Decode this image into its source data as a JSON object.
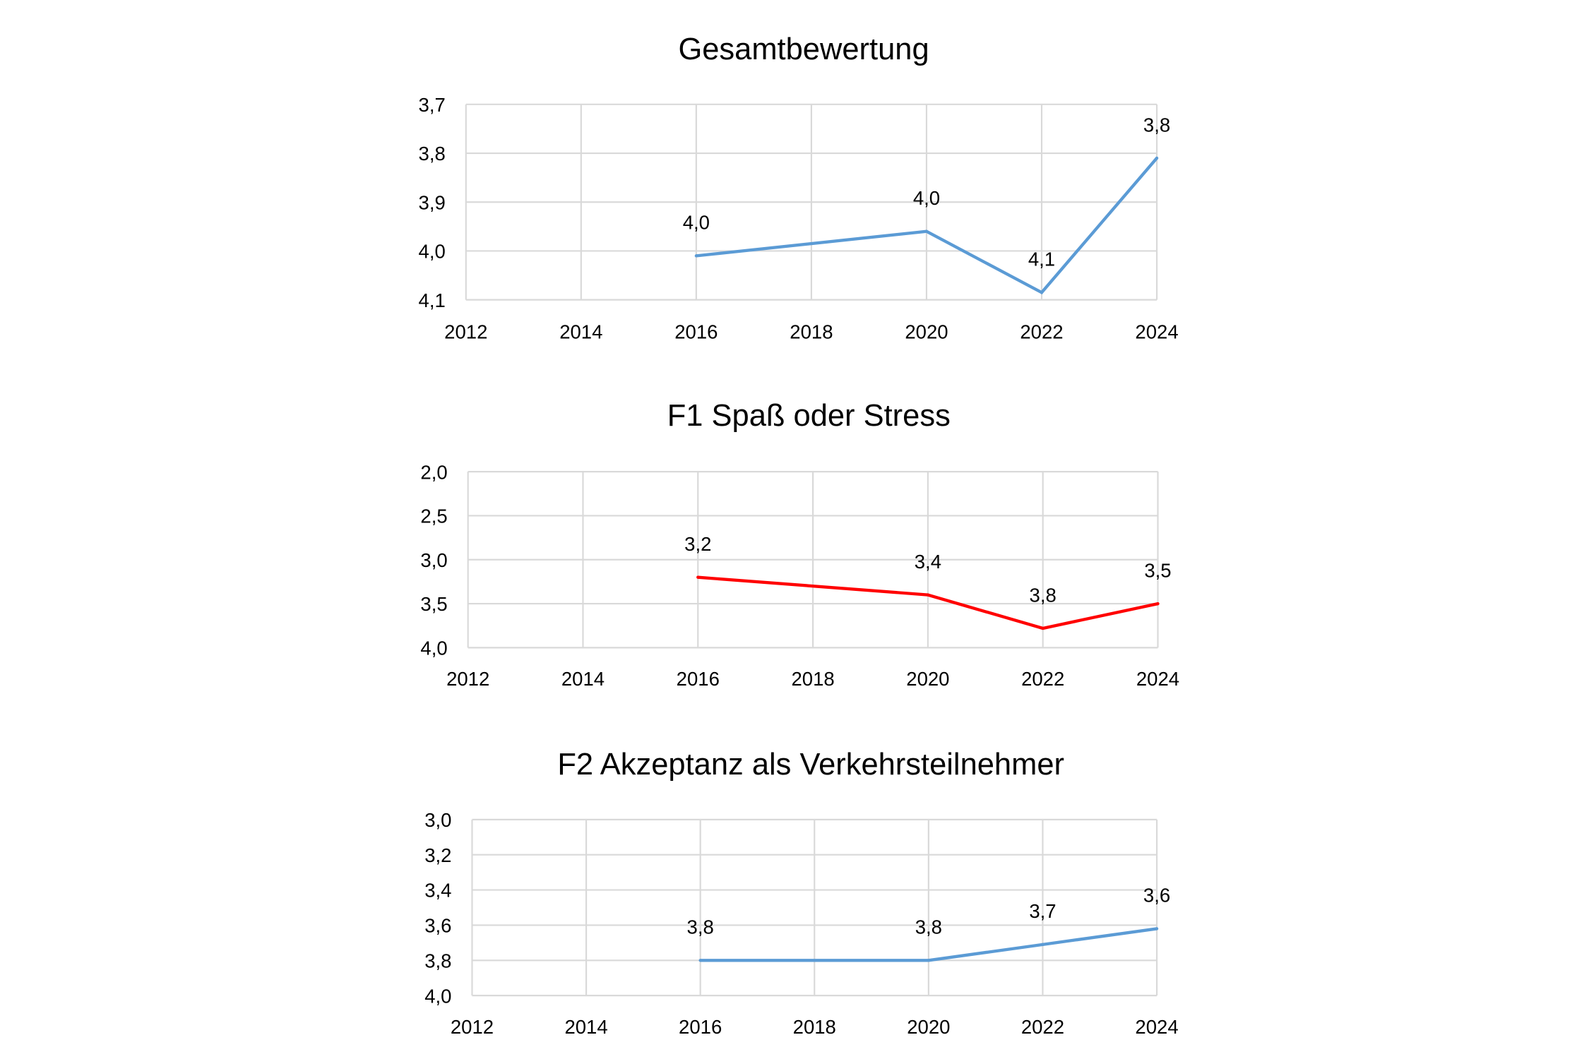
{
  "chart_data": [
    {
      "type": "line",
      "title": "Gesamtbewertung",
      "x": [
        2016,
        2020,
        2022,
        2024
      ],
      "series": [
        {
          "name": "Gesamtbewertung",
          "values": [
            4.01,
            3.96,
            4.085,
            3.81
          ],
          "data_labels": [
            "4,0",
            "4,0",
            "4,1",
            "3,8"
          ],
          "color": "#5b9bd5"
        }
      ],
      "xlim": [
        2012,
        2024
      ],
      "xticks": [
        "2012",
        "2014",
        "2016",
        "2018",
        "2020",
        "2022",
        "2024"
      ],
      "ylim": [
        3.7,
        4.1
      ],
      "y_reversed": true,
      "yticks": [
        {
          "value": 3.7,
          "label": "3,7"
        },
        {
          "value": 3.8,
          "label": "3,8"
        },
        {
          "value": 3.9,
          "label": "3,9"
        },
        {
          "value": 4.0,
          "label": "4,0"
        },
        {
          "value": 4.1,
          "label": "4,1"
        }
      ],
      "grid": true
    },
    {
      "type": "line",
      "title": "F1  Spaß oder Stress",
      "x": [
        2016,
        2020,
        2022,
        2024
      ],
      "series": [
        {
          "name": "F1",
          "values": [
            3.2,
            3.4,
            3.78,
            3.5
          ],
          "data_labels": [
            "3,2",
            "3,4",
            "3,8",
            "3,5"
          ],
          "color": "#ff0000"
        }
      ],
      "xlim": [
        2012,
        2024
      ],
      "xticks": [
        "2012",
        "2014",
        "2016",
        "2018",
        "2020",
        "2022",
        "2024"
      ],
      "ylim": [
        2.0,
        4.0
      ],
      "y_reversed": true,
      "yticks": [
        {
          "value": 2.0,
          "label": "2,0"
        },
        {
          "value": 2.5,
          "label": "2,5"
        },
        {
          "value": 3.0,
          "label": "3,0"
        },
        {
          "value": 3.5,
          "label": "3,5"
        },
        {
          "value": 4.0,
          "label": "4,0"
        }
      ],
      "grid": true
    },
    {
      "type": "line",
      "title": "F2  Akzeptanz als Verkehrsteilnehmer",
      "x": [
        2016,
        2020,
        2022,
        2024
      ],
      "series": [
        {
          "name": "F2",
          "values": [
            3.8,
            3.8,
            3.71,
            3.62
          ],
          "data_labels": [
            "3,8",
            "3,8",
            "3,7",
            "3,6"
          ],
          "color": "#5b9bd5"
        }
      ],
      "xlim": [
        2012,
        2024
      ],
      "xticks": [
        "2012",
        "2014",
        "2016",
        "2018",
        "2020",
        "2022",
        "2024"
      ],
      "ylim": [
        3.0,
        4.0
      ],
      "y_reversed": true,
      "yticks": [
        {
          "value": 3.0,
          "label": "3,0"
        },
        {
          "value": 3.2,
          "label": "3,2"
        },
        {
          "value": 3.4,
          "label": "3,4"
        },
        {
          "value": 3.6,
          "label": "3,6"
        },
        {
          "value": 3.8,
          "label": "3,8"
        },
        {
          "value": 4.0,
          "label": "4,0"
        }
      ],
      "grid": true
    }
  ]
}
